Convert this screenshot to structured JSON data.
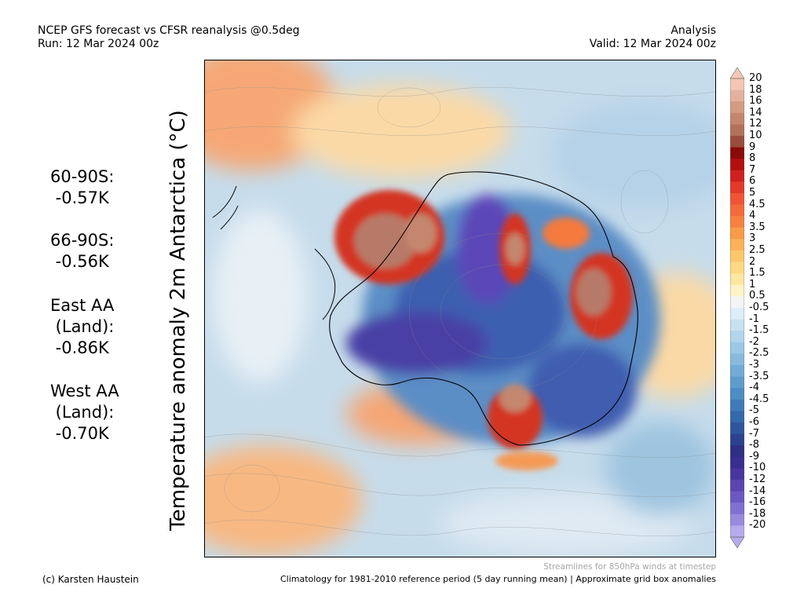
{
  "header": {
    "title": "NCEP GFS forecast vs CFSR reanalysis @0.5deg",
    "run": "Run: 12 Mar 2024 00z",
    "analysis": "Analysis",
    "valid": "Valid: 12 Mar 2024 00z"
  },
  "map": {
    "ylabel": "Temperature anomaly 2m Antarctica (°C)",
    "description_icon": "antarctica-map"
  },
  "stats": [
    {
      "text": "60-90S:\n -0.57K"
    },
    {
      "text": "66-90S:\n -0.56K"
    },
    {
      "text": "East AA\n (Land):\n -0.86K"
    },
    {
      "text": "West AA\n (Land):\n -0.70K"
    }
  ],
  "colorbar": {
    "labels": [
      "20",
      "18",
      "16",
      "14",
      "12",
      "10",
      "9",
      "8",
      "7",
      "6",
      "5",
      "4.5",
      "4",
      "3.5",
      "3",
      "2.5",
      "2",
      "1.5",
      "1",
      "0.5",
      "-0.5",
      "-1",
      "-1.5",
      "-2",
      "-2.5",
      "-3",
      "-3.5",
      "-4",
      "-4.5",
      "-5",
      "-6",
      "-7",
      "-8",
      "-9",
      "-10",
      "-12",
      "-14",
      "-16",
      "-18",
      "-20"
    ],
    "colors": [
      "#f3c7b4",
      "#e4b29c",
      "#d59c84",
      "#c4876e",
      "#b3705b",
      "#9a4d3c",
      "#8a0a0a",
      "#b30f0f",
      "#cf2020",
      "#e23a2a",
      "#ef5535",
      "#f46a3d",
      "#f7823f",
      "#f99b49",
      "#fbb258",
      "#fcc86c",
      "#fdd983",
      "#fee7a0",
      "#fff3c8",
      "#f4f4f4",
      "#deeef8",
      "#c8e2f2",
      "#b2d5ec",
      "#9cc8e5",
      "#87badd",
      "#73abd5",
      "#5f9ccd",
      "#4e8cc4",
      "#3f7bb9",
      "#3469ad",
      "#2f559f",
      "#2c4290",
      "#2e2f85",
      "#3a2d90",
      "#4a36a0",
      "#5a45b2",
      "#6c58c3",
      "#8170d2",
      "#9a8ade",
      "#b8abec"
    ]
  },
  "footer": {
    "credit": "(c) Karsten Haustein",
    "stream_note": "Streamlines for 850hPa winds at timestep",
    "clim_note": "Climatology for 1981-2010 reference period (5 day running mean) | Approximate grid box anomalies"
  }
}
